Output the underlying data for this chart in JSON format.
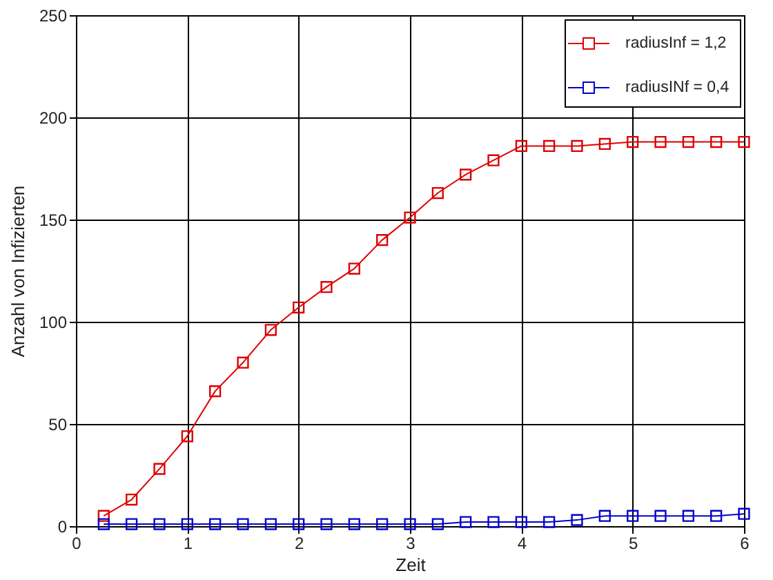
{
  "chart_data": {
    "type": "line",
    "xlabel": "Zeit",
    "ylabel": "Anzahl von Infizierten",
    "x": [
      0.25,
      0.5,
      0.75,
      1.0,
      1.25,
      1.5,
      1.75,
      2.0,
      2.25,
      2.5,
      2.75,
      3.0,
      3.25,
      3.5,
      3.75,
      4.0,
      4.25,
      4.5,
      4.75,
      5.0,
      5.25,
      5.5,
      5.75,
      6.0
    ],
    "series": [
      {
        "name": "radiusInf = 1,2",
        "color": "#dd0000",
        "values": [
          5,
          13,
          28,
          44,
          66,
          80,
          96,
          107,
          117,
          126,
          140,
          151,
          163,
          172,
          179,
          186,
          186,
          186,
          187,
          188,
          188,
          188,
          188,
          188
        ]
      },
      {
        "name": "radiusINf = 0,4",
        "color": "#0000cc",
        "values": [
          1,
          1,
          1,
          1,
          1,
          1,
          1,
          1,
          1,
          1,
          1,
          1,
          1,
          2,
          2,
          2,
          2,
          3,
          5,
          5,
          5,
          5,
          5,
          6
        ]
      }
    ],
    "xlim": [
      0,
      6
    ],
    "xticks": [
      0,
      1,
      2,
      3,
      4,
      5,
      6
    ],
    "ylim": [
      0,
      250
    ],
    "yticks": [
      0,
      50,
      100,
      150,
      200,
      250
    ],
    "grid": true,
    "legend": "top right",
    "marker": "square",
    "line_style": "solid"
  }
}
